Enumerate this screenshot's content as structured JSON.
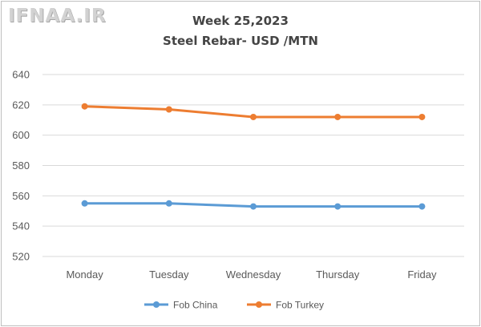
{
  "watermark": "IFNAA.IR",
  "chart_data": {
    "type": "line",
    "title": "Week 25,2023",
    "subtitle": "Steel Rebar- USD /MTN",
    "categories": [
      "Monday",
      "Tuesday",
      "Wednesday",
      "Thursday",
      "Friday"
    ],
    "series": [
      {
        "name": "Fob China",
        "values": [
          555,
          555,
          553,
          553,
          553
        ],
        "color": "#5b9bd5"
      },
      {
        "name": "Fob Turkey",
        "values": [
          619,
          617,
          612,
          612,
          612
        ],
        "color": "#ed7d31"
      }
    ],
    "ylim": [
      520,
      640
    ],
    "yticks": [
      520,
      540,
      560,
      580,
      600,
      620,
      640
    ],
    "grid": true,
    "legend": "bottom",
    "marker": "circle"
  }
}
